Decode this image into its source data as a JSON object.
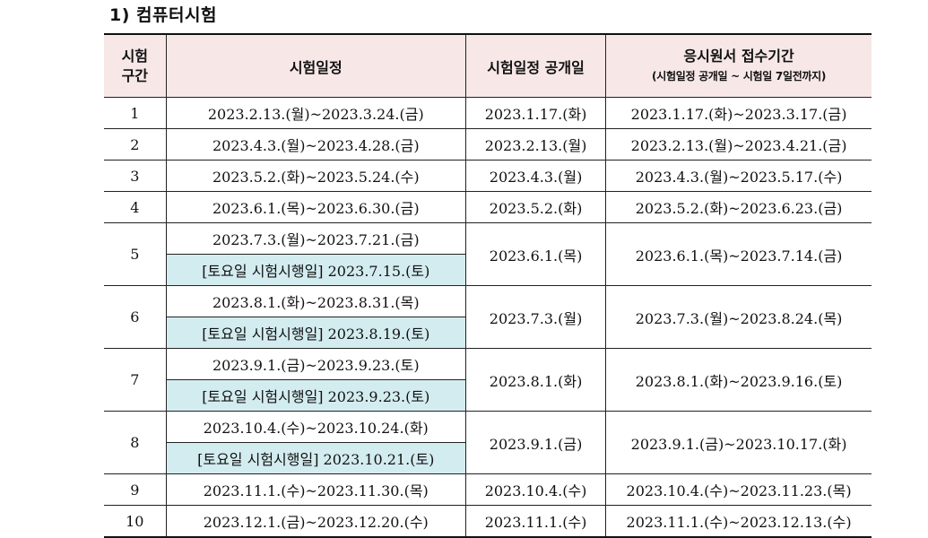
{
  "section_title": "1) 컴퓨터시험",
  "headers": {
    "col1_line1": "시험",
    "col1_line2": "구간",
    "col2": "시험일정",
    "col3": "시험일정 공개일",
    "col4_line1": "응시원서 접수기간",
    "col4_line2": "(시험일정 공개일 ~ 시험일 7일전까지)"
  },
  "rows": [
    {
      "no": "1",
      "schedule": "2023.2.13.(월)~2023.3.24.(금)",
      "saturday": "",
      "open": "2023.1.17.(화)",
      "apply": "2023.1.17.(화)~2023.3.17.(금)"
    },
    {
      "no": "2",
      "schedule": "2023.4.3.(월)~2023.4.28.(금)",
      "saturday": "",
      "open": "2023.2.13.(월)",
      "apply": "2023.2.13.(월)~2023.4.21.(금)"
    },
    {
      "no": "3",
      "schedule": "2023.5.2.(화)~2023.5.24.(수)",
      "saturday": "",
      "open": "2023.4.3.(월)",
      "apply": "2023.4.3.(월)~2023.5.17.(수)"
    },
    {
      "no": "4",
      "schedule": "2023.6.1.(목)~2023.6.30.(금)",
      "saturday": "",
      "open": "2023.5.2.(화)",
      "apply": "2023.5.2.(화)~2023.6.23.(금)"
    },
    {
      "no": "5",
      "schedule": "2023.7.3.(월)~2023.7.21.(금)",
      "saturday": "[토요일 시험시행일] 2023.7.15.(토)",
      "open": "2023.6.1.(목)",
      "apply": "2023.6.1.(목)~2023.7.14.(금)"
    },
    {
      "no": "6",
      "schedule": "2023.8.1.(화)~2023.8.31.(목)",
      "saturday": "[토요일 시험시행일] 2023.8.19.(토)",
      "open": "2023.7.3.(월)",
      "apply": "2023.7.3.(월)~2023.8.24.(목)"
    },
    {
      "no": "7",
      "schedule": "2023.9.1.(금)~2023.9.23.(토)",
      "saturday": "[토요일 시험시행일] 2023.9.23.(토)",
      "open": "2023.8.1.(화)",
      "apply": "2023.8.1.(화)~2023.9.16.(토)"
    },
    {
      "no": "8",
      "schedule": "2023.10.4.(수)~2023.10.24.(화)",
      "saturday": "[토요일 시험시행일] 2023.10.21.(토)",
      "open": "2023.9.1.(금)",
      "apply": "2023.9.1.(금)~2023.10.17.(화)"
    },
    {
      "no": "9",
      "schedule": "2023.11.1.(수)~2023.11.30.(목)",
      "saturday": "",
      "open": "2023.10.4.(수)",
      "apply": "2023.10.4.(수)~2023.11.23.(목)"
    },
    {
      "no": "10",
      "schedule": "2023.12.1.(금)~2023.12.20.(수)",
      "saturday": "",
      "open": "2023.11.1.(수)",
      "apply": "2023.11.1.(수)~2023.12.13.(수)"
    }
  ],
  "colors": {
    "header_bg": "#f7e7e7",
    "saturday_bg": "#d3ecf0",
    "border": "#222222"
  }
}
